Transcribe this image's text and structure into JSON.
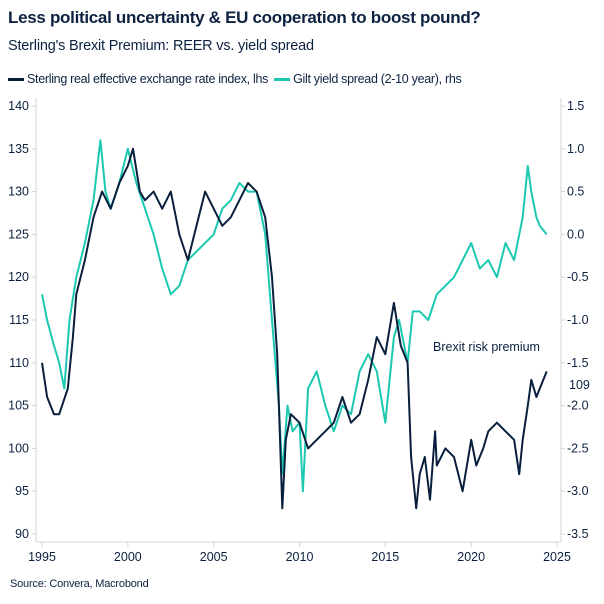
{
  "title": "Less political uncertainty & EU cooperation to boost pound?",
  "subtitle": "Sterling's Brexit Premium: REER vs. yield spread",
  "source": "Source: Convera, Macrobond",
  "chart_data": {
    "type": "line",
    "title": "Less political uncertainty & EU cooperation to boost pound?",
    "subtitle": "Sterling's Brexit Premium: REER vs. yield spread",
    "legend_placement": "top-left",
    "grid": false,
    "x_ticks": [
      "1995",
      "2000",
      "2005",
      "2010",
      "2015",
      "2020",
      "2025"
    ],
    "xlim": [
      1995,
      2025
    ],
    "y_left": {
      "ticks": [
        "90",
        "95",
        "100",
        "105",
        "110",
        "115",
        "120",
        "125",
        "130",
        "135",
        "140"
      ],
      "lim": [
        90,
        140
      ]
    },
    "y_right": {
      "ticks": [
        "-3.5",
        "-3.0",
        "-2.5",
        "-2.0",
        "-1.5",
        "-1.0",
        "-0.5",
        "0.0",
        "0.5",
        "1.0",
        "1.5"
      ],
      "lim": [
        -3.5,
        1.5
      ]
    },
    "annotation": "Brexit risk premium",
    "last_value_label": "109",
    "series": [
      {
        "name": "Sterling real effective exchange rate index, lhs",
        "axis": "left",
        "color": "#0a1f3d",
        "x": [
          1995,
          1995.3,
          1995.7,
          1996,
          1996.5,
          1996.8,
          1997,
          1997.5,
          1998,
          1998.5,
          1999,
          1999.5,
          2000,
          2000.3,
          2000.7,
          2001,
          2001.5,
          2002,
          2002.5,
          2003,
          2003.5,
          2004,
          2004.5,
          2005,
          2005.5,
          2006,
          2006.5,
          2007,
          2007.5,
          2008,
          2008.4,
          2008.7,
          2009,
          2009.2,
          2009.5,
          2010,
          2010.5,
          2011,
          2011.5,
          2012,
          2012.5,
          2013,
          2013.5,
          2014,
          2014.5,
          2015,
          2015.5,
          2015.9,
          2016.3,
          2016.5,
          2016.8,
          2017,
          2017.3,
          2017.6,
          2017.9,
          2018,
          2018.5,
          2019,
          2019.5,
          2020,
          2020.3,
          2020.7,
          2021,
          2021.5,
          2022,
          2022.5,
          2022.8,
          2023,
          2023.3,
          2023.5,
          2023.8,
          2024,
          2024.4
        ],
        "y": [
          110,
          106,
          104,
          104,
          107,
          113,
          118,
          122,
          127,
          130,
          128,
          131,
          133,
          135,
          130,
          129,
          130,
          128,
          130,
          125,
          122,
          126,
          130,
          128,
          126,
          127,
          129,
          131,
          130,
          127,
          120,
          111,
          93,
          101,
          104,
          103,
          100,
          101,
          102,
          103,
          106,
          103,
          104,
          108,
          113,
          111,
          117,
          112,
          110,
          99,
          93,
          97,
          99,
          94,
          102,
          98,
          100,
          99,
          95,
          101,
          98,
          100,
          102,
          103,
          102,
          101,
          97,
          101,
          105,
          108,
          106,
          107,
          109
        ]
      },
      {
        "name": "Gilt yield spread (2-10 year), rhs",
        "axis": "right",
        "color": "#1cc9b0",
        "x": [
          1995,
          1995.3,
          1995.7,
          1996,
          1996.3,
          1996.6,
          1997,
          1997.5,
          1998,
          1998.4,
          1998.7,
          1999,
          1999.5,
          2000,
          2000.5,
          2001,
          2001.5,
          2002,
          2002.5,
          2003,
          2003.5,
          2004,
          2004.5,
          2005,
          2005.5,
          2006,
          2006.5,
          2007,
          2007.5,
          2008,
          2008.4,
          2008.8,
          2009,
          2009.3,
          2009.6,
          2010,
          2010.2,
          2010.5,
          2011,
          2011.5,
          2012,
          2012.5,
          2013,
          2013.5,
          2014,
          2014.5,
          2015,
          2015.5,
          2015.8,
          2016.3,
          2016.6,
          2017,
          2017.5,
          2018,
          2018.5,
          2019,
          2019.5,
          2020,
          2020.5,
          2021,
          2021.5,
          2022,
          2022.5,
          2023,
          2023.3,
          2023.5,
          2023.8,
          2024,
          2024.4
        ],
        "y": [
          -0.7,
          -1.0,
          -1.3,
          -1.5,
          -1.8,
          -1.0,
          -0.5,
          -0.1,
          0.4,
          1.1,
          0.5,
          0.3,
          0.6,
          1.0,
          0.6,
          0.3,
          0.0,
          -0.4,
          -0.7,
          -0.6,
          -0.3,
          -0.2,
          -0.1,
          0.0,
          0.3,
          0.4,
          0.6,
          0.5,
          0.5,
          0.0,
          -1.0,
          -2.0,
          -2.8,
          -2.0,
          -2.3,
          -2.2,
          -3.0,
          -1.8,
          -1.6,
          -2.0,
          -2.3,
          -2.0,
          -2.1,
          -1.6,
          -1.4,
          -1.6,
          -2.2,
          -1.2,
          -1.0,
          -1.5,
          -0.9,
          -0.9,
          -1.0,
          -0.7,
          -0.6,
          -0.5,
          -0.3,
          -0.1,
          -0.4,
          -0.3,
          -0.5,
          -0.1,
          -0.3,
          0.2,
          0.8,
          0.5,
          0.2,
          0.1,
          0.0
        ]
      }
    ]
  }
}
